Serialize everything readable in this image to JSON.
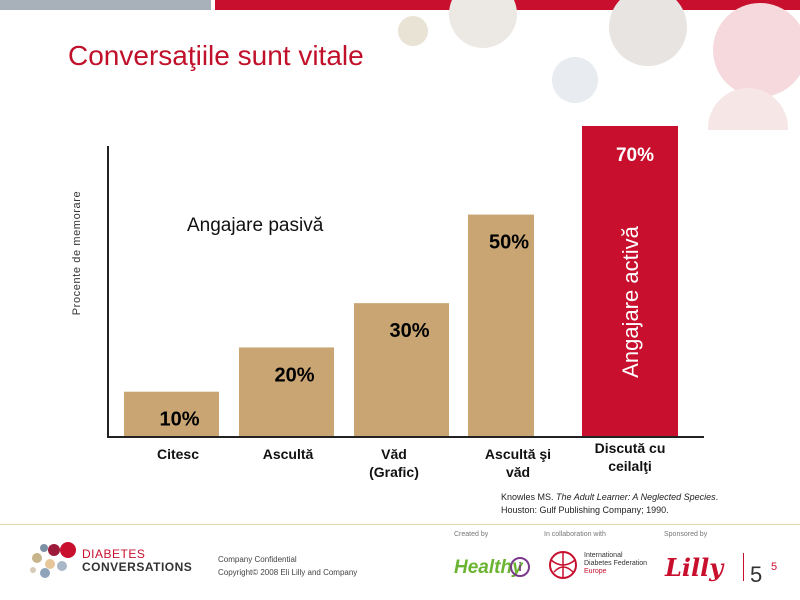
{
  "slide": {
    "title": "Conversaţiile sunt vitale",
    "page_number": "5",
    "page_number_sup": "5"
  },
  "chart_data": {
    "type": "bar",
    "categories": [
      "Citesc",
      "Ascultă",
      "Văd (Grafic)",
      "Ascultă şi văd",
      "Discută cu ceilalţi"
    ],
    "values": [
      10,
      20,
      30,
      50,
      70
    ],
    "value_labels": [
      "10%",
      "20%",
      "30%",
      "50%",
      "70%"
    ],
    "title": "",
    "xlabel": "",
    "ylabel": "Procente de memorare",
    "ylim": [
      0,
      100
    ],
    "grid": false,
    "legend": "none",
    "annotations": [
      "Angajare pasivă",
      "Angajare activă"
    ],
    "colors": {
      "passive": "#c8a573",
      "active": "#c8102e",
      "label": "#000000",
      "active_label": "#ffffff"
    }
  },
  "reference": {
    "line1_prefix": "Knowles MS. ",
    "line1_italic": "The Adult Learner: A Neglected Species",
    "line1_suffix": ".",
    "line2": "Houston: Gulf Publishing Company; 1990."
  },
  "footer": {
    "brand_line1": "DIABETES",
    "brand_line2": "CONVERSATIONS",
    "confidential": "Company Confidential",
    "copyright": "Copyright© 2008  Eli Lilly and Company",
    "created_by": "Created by",
    "collaboration": "In collaboration with",
    "sponsored_by": "Sponsored by",
    "healthy_logo": "Healthy",
    "healthy_logo_i": "i",
    "idf_line1": "International",
    "idf_line2": "Diabetes Federation",
    "idf_line3": "Europe",
    "lilly_logo": "Lilly"
  }
}
